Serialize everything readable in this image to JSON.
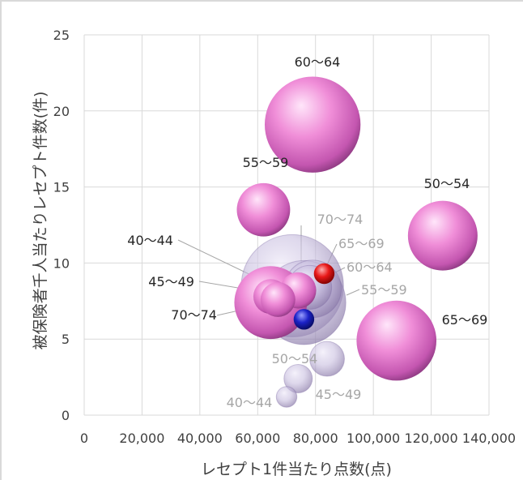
{
  "chart_data": {
    "type": "bubble",
    "title": "",
    "xlabel": "レセプト1件当たり点数(点)",
    "ylabel": "被保険者千人当たりレセプト件数(件)",
    "xlim": [
      0,
      140000
    ],
    "ylim": [
      0,
      25
    ],
    "xticks": [
      0,
      20000,
      40000,
      60000,
      80000,
      100000,
      120000,
      140000
    ],
    "xtick_labels": [
      "0",
      "20,000",
      "40,000",
      "60,000",
      "80,000",
      "100,000",
      "120,000",
      "140,000"
    ],
    "yticks": [
      0,
      5,
      10,
      15,
      20,
      25
    ],
    "ytick_labels": [
      "0",
      "5",
      "10",
      "15",
      "20",
      "25"
    ],
    "grid": true,
    "colors": {
      "pink": "#f08ed8",
      "lavender": "#c9bfe0",
      "red": "#e81818",
      "blue": "#1c22c8",
      "label_dark": "#262626",
      "label_grey": "#a6a6a6"
    },
    "series": [
      {
        "color": "pink",
        "points": [
          {
            "label": "40〜44",
            "x": 64500,
            "y": 7.8,
            "size": 0.2
          },
          {
            "label": "45〜49",
            "x": 67000,
            "y": 7.6,
            "size": 0.2
          },
          {
            "label": "50〜54",
            "x": 124000,
            "y": 11.8,
            "size": 1.0
          },
          {
            "label": "55〜59",
            "x": 62000,
            "y": 13.5,
            "size": 0.55
          },
          {
            "label": "60〜64",
            "x": 79000,
            "y": 19.1,
            "size": 2.0
          },
          {
            "label": "65〜69",
            "x": 108000,
            "y": 4.9,
            "size": 1.35
          },
          {
            "label": "70〜74",
            "x": 64500,
            "y": 7.4,
            "size": 1.1
          },
          {
            "label": "",
            "x": 74000,
            "y": 8.2,
            "size": 0.22
          }
        ]
      },
      {
        "color": "lavender",
        "points": [
          {
            "label": "40〜44",
            "x": 70000,
            "y": 1.2,
            "size": 0.05
          },
          {
            "label": "45〜49",
            "x": 74000,
            "y": 2.4,
            "size": 0.12
          },
          {
            "label": "50〜54",
            "x": 84000,
            "y": 3.7,
            "size": 0.2
          },
          {
            "label": "55〜59",
            "x": 76000,
            "y": 7.4,
            "size": 1.5
          },
          {
            "label": "60〜64",
            "x": 72000,
            "y": 8.5,
            "size": 2.3
          },
          {
            "label": "65〜69",
            "x": 79000,
            "y": 8.3,
            "size": 0.65
          },
          {
            "label": "70〜74",
            "x": 78000,
            "y": 8.4,
            "size": 0.35
          }
        ]
      },
      {
        "color": "red",
        "points": [
          {
            "label": "",
            "x": 83000,
            "y": 9.3,
            "size": 0.05
          }
        ]
      },
      {
        "color": "blue",
        "points": [
          {
            "label": "",
            "x": 76000,
            "y": 6.3,
            "size": 0.05
          }
        ]
      }
    ]
  }
}
